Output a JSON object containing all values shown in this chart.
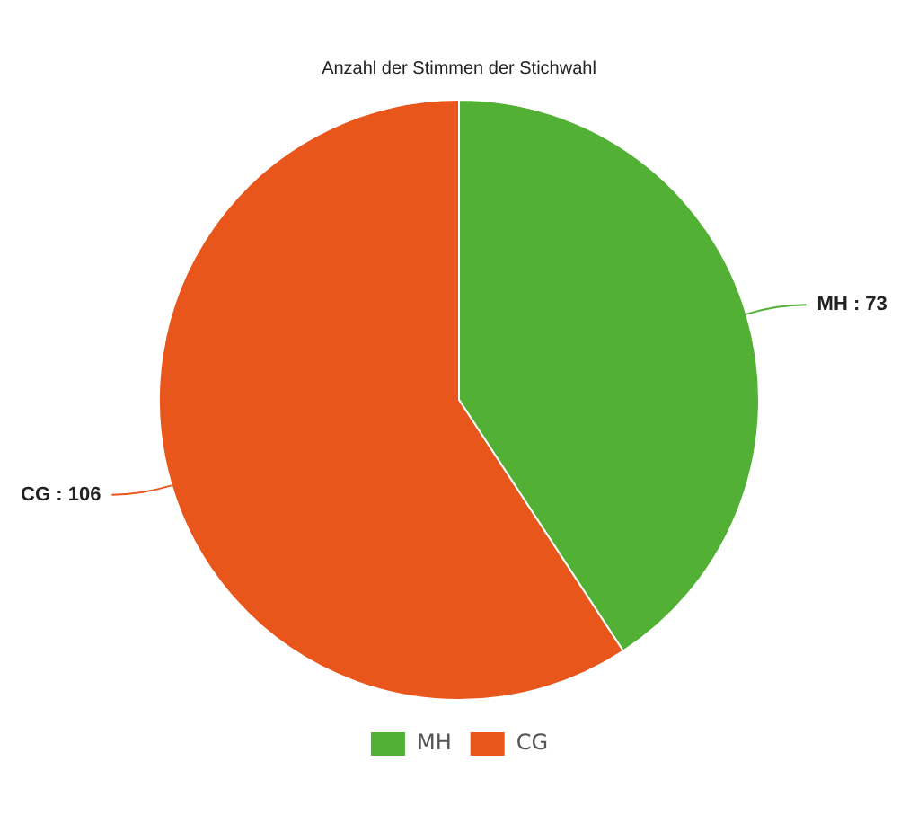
{
  "chart_data": {
    "type": "pie",
    "title": "Anzahl der Stimmen der Stichwahl",
    "categories": [
      "MH",
      "CG"
    ],
    "values": [
      73,
      106
    ],
    "colors": [
      "#52b135",
      "#e8561c"
    ],
    "value_labels": [
      "MH : 73",
      "CG : 106"
    ],
    "legend": "bottom"
  }
}
